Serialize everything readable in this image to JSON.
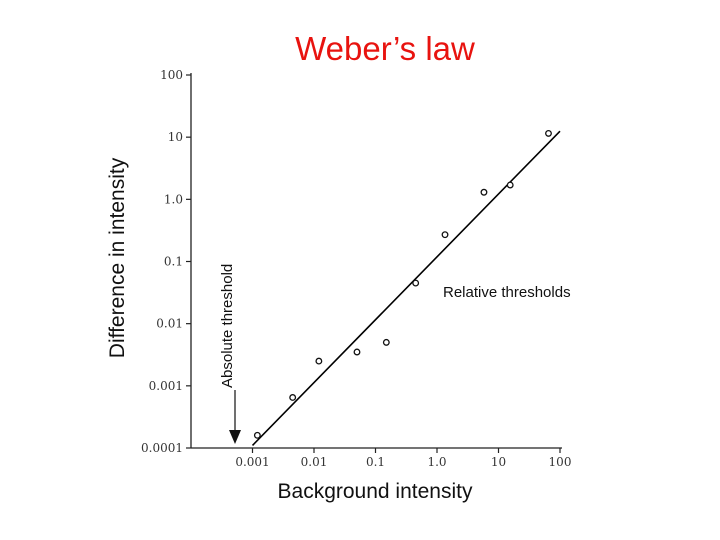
{
  "chart_data": {
    "type": "scatter",
    "title": "Weber’s law",
    "xlabel": "Background intensity",
    "ylabel": "Difference in intensity",
    "x_scale": "log",
    "y_scale": "log",
    "xlim": [
      0.0001,
      100
    ],
    "ylim": [
      0.0001,
      100
    ],
    "x_ticks": [
      0.001,
      0.01,
      0.1,
      1.0,
      10,
      100
    ],
    "x_tick_labels": [
      "0.001",
      "0.01",
      "0.1",
      "1.0",
      "10",
      "100"
    ],
    "y_ticks": [
      0.0001,
      0.001,
      0.01,
      0.1,
      1.0,
      10,
      100
    ],
    "y_tick_labels": [
      "0.0001",
      "0.001",
      "0.01",
      "0.1",
      "1.0",
      "10",
      "100"
    ],
    "grid": false,
    "series": [
      {
        "kind": "points",
        "marker": "open-circle",
        "points": [
          {
            "x": 0.0012,
            "y": 0.00016
          },
          {
            "x": 0.0045,
            "y": 0.00065
          },
          {
            "x": 0.012,
            "y": 0.0025
          },
          {
            "x": 0.05,
            "y": 0.0035
          },
          {
            "x": 0.15,
            "y": 0.005
          },
          {
            "x": 0.45,
            "y": 0.045
          },
          {
            "x": 1.35,
            "y": 0.27
          },
          {
            "x": 5.8,
            "y": 1.3
          },
          {
            "x": 15.5,
            "y": 1.7
          },
          {
            "x": 65,
            "y": 11.5
          }
        ]
      },
      {
        "kind": "fit-line",
        "points": [
          {
            "x": 0.001,
            "y": 0.00011
          },
          {
            "x": 100,
            "y": 12.5
          }
        ]
      }
    ],
    "annotations": [
      {
        "text": "Absolute threshold",
        "x": 0.0007,
        "y": 0.0001,
        "kind": "vertical-label-with-down-arrow"
      },
      {
        "text": "Relative thresholds",
        "x": 5,
        "y": 0.05,
        "kind": "label"
      }
    ],
    "colors": {
      "title": "#e8130f",
      "ink": "#111111",
      "tick_text": "#333333"
    }
  }
}
